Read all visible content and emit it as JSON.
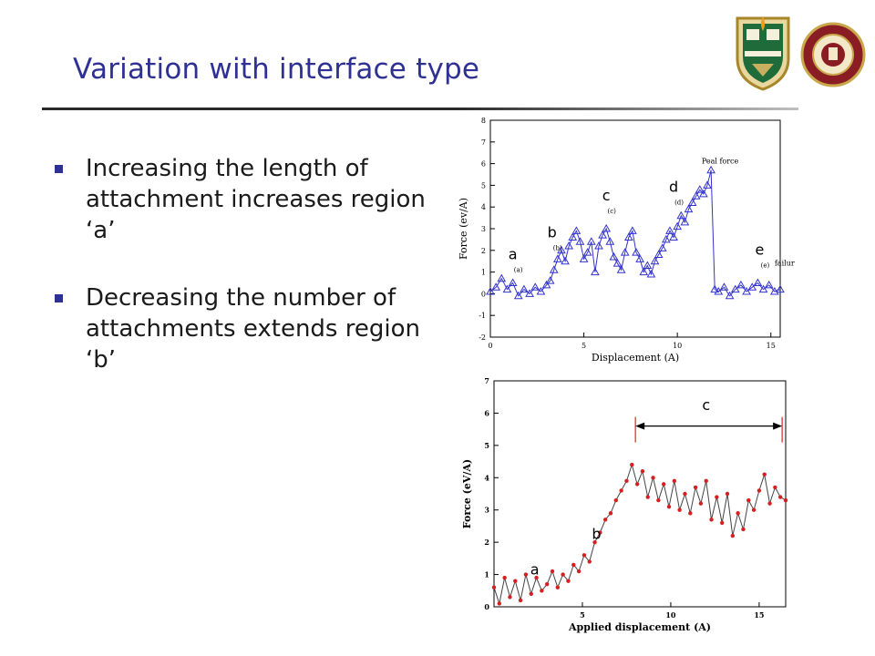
{
  "slide": {
    "title": "Variation with interface type",
    "bullets": [
      "Increasing the length of attachment increases region ‘a’",
      "Decreasing the number of attachments extends region ‘b’"
    ]
  },
  "logos": [
    "crest-logo",
    "university-seal"
  ],
  "colors": {
    "title": "#2e3192",
    "bullet": "#2e3192",
    "series_top": "#3333cc",
    "series_bottom_line": "#444444",
    "series_bottom_marker": "#d42020"
  },
  "chart_data": [
    {
      "type": "line",
      "title": "",
      "xlabel": "Displacement (A)",
      "ylabel": "Force (ev/A)",
      "xlim": [
        0,
        15.5
      ],
      "ylim": [
        -2,
        8
      ],
      "xticks": [
        0,
        5,
        10,
        15
      ],
      "yticks": [
        -2,
        -1,
        0,
        1,
        2,
        3,
        4,
        5,
        6,
        7,
        8
      ],
      "marker": "triangle",
      "region_labels": [
        {
          "label": "a",
          "sub": "(a)",
          "x": 1.2,
          "y": 1.6
        },
        {
          "label": "b",
          "sub": "(b)",
          "x": 3.3,
          "y": 2.6
        },
        {
          "label": "c",
          "sub": "(c)",
          "x": 6.2,
          "y": 4.3
        },
        {
          "label": "d",
          "sub": "(d)",
          "x": 9.8,
          "y": 4.7
        },
        {
          "label": "e",
          "sub": "(e)",
          "x": 14.4,
          "y": 1.8
        }
      ],
      "annotations": [
        {
          "text": "Peal force",
          "x": 11.3,
          "y": 6.0
        },
        {
          "text": "failure",
          "x": 15.2,
          "y": 1.3
        }
      ],
      "x": [
        0,
        0.3,
        0.6,
        0.9,
        1.2,
        1.5,
        1.8,
        2.1,
        2.4,
        2.7,
        3.0,
        3.2,
        3.4,
        3.6,
        3.8,
        4.0,
        4.2,
        4.4,
        4.6,
        4.8,
        5.0,
        5.2,
        5.4,
        5.6,
        5.8,
        6.0,
        6.2,
        6.4,
        6.6,
        6.8,
        7.0,
        7.2,
        7.4,
        7.6,
        7.8,
        8.0,
        8.2,
        8.4,
        8.6,
        8.8,
        9.0,
        9.2,
        9.4,
        9.6,
        9.8,
        10.0,
        10.2,
        10.4,
        10.6,
        10.8,
        11.0,
        11.2,
        11.4,
        11.6,
        11.8,
        12.0,
        12.2,
        12.5,
        12.8,
        13.1,
        13.4,
        13.7,
        14.0,
        14.3,
        14.6,
        14.9,
        15.2,
        15.5
      ],
      "y": [
        0.1,
        0.3,
        0.7,
        0.2,
        0.5,
        -0.1,
        0.2,
        0.0,
        0.3,
        0.1,
        0.4,
        0.6,
        1.1,
        1.6,
        2.0,
        1.5,
        2.2,
        2.6,
        2.9,
        2.4,
        1.6,
        1.9,
        2.4,
        1.0,
        2.2,
        2.7,
        3.0,
        2.4,
        1.7,
        1.4,
        1.1,
        1.9,
        2.6,
        2.9,
        1.9,
        1.6,
        1.0,
        1.3,
        0.9,
        1.5,
        1.8,
        2.1,
        2.5,
        2.9,
        2.6,
        3.1,
        3.6,
        3.3,
        3.9,
        4.2,
        4.5,
        4.8,
        4.6,
        5.0,
        5.7,
        0.2,
        0.1,
        0.3,
        -0.1,
        0.2,
        0.4,
        0.1,
        0.3,
        0.5,
        0.2,
        0.4,
        0.1,
        0.2
      ]
    },
    {
      "type": "line",
      "title": "",
      "xlabel": "Applied displacement (A)",
      "ylabel": "Force (eV/A)",
      "xlim": [
        0,
        16.5
      ],
      "ylim": [
        0,
        7
      ],
      "xticks": [
        5,
        10,
        15
      ],
      "yticks": [
        0,
        1,
        2,
        3,
        4,
        5,
        6,
        7
      ],
      "marker": "dot",
      "region_labels": [
        {
          "label": "a",
          "x": 2.3,
          "y": 1.0
        },
        {
          "label": "b",
          "x": 5.8,
          "y": 2.1
        },
        {
          "label": "c",
          "x": 12.0,
          "y": 6.1
        }
      ],
      "span": {
        "label": "c",
        "from": 8.0,
        "to": 16.3,
        "y": 5.6
      },
      "x": [
        0,
        0.3,
        0.6,
        0.9,
        1.2,
        1.5,
        1.8,
        2.1,
        2.4,
        2.7,
        3.0,
        3.3,
        3.6,
        3.9,
        4.2,
        4.5,
        4.8,
        5.1,
        5.4,
        5.7,
        6.0,
        6.3,
        6.6,
        6.9,
        7.2,
        7.5,
        7.8,
        8.1,
        8.4,
        8.7,
        9.0,
        9.3,
        9.6,
        9.9,
        10.2,
        10.5,
        10.8,
        11.1,
        11.4,
        11.7,
        12.0,
        12.3,
        12.6,
        12.9,
        13.2,
        13.5,
        13.8,
        14.1,
        14.4,
        14.7,
        15.0,
        15.3,
        15.6,
        15.9,
        16.2,
        16.5
      ],
      "y": [
        0.6,
        0.1,
        0.9,
        0.3,
        0.8,
        0.2,
        1.0,
        0.4,
        0.9,
        0.5,
        0.7,
        1.1,
        0.6,
        1.0,
        0.8,
        1.3,
        1.1,
        1.6,
        1.4,
        2.0,
        2.3,
        2.7,
        2.9,
        3.3,
        3.6,
        3.9,
        4.4,
        3.8,
        4.2,
        3.4,
        4.0,
        3.3,
        3.8,
        3.1,
        3.9,
        3.0,
        3.5,
        2.9,
        3.7,
        3.2,
        3.9,
        2.7,
        3.4,
        2.6,
        3.5,
        2.2,
        2.9,
        2.4,
        3.3,
        3.0,
        3.6,
        4.1,
        3.2,
        3.7,
        3.4,
        3.3
      ]
    }
  ]
}
